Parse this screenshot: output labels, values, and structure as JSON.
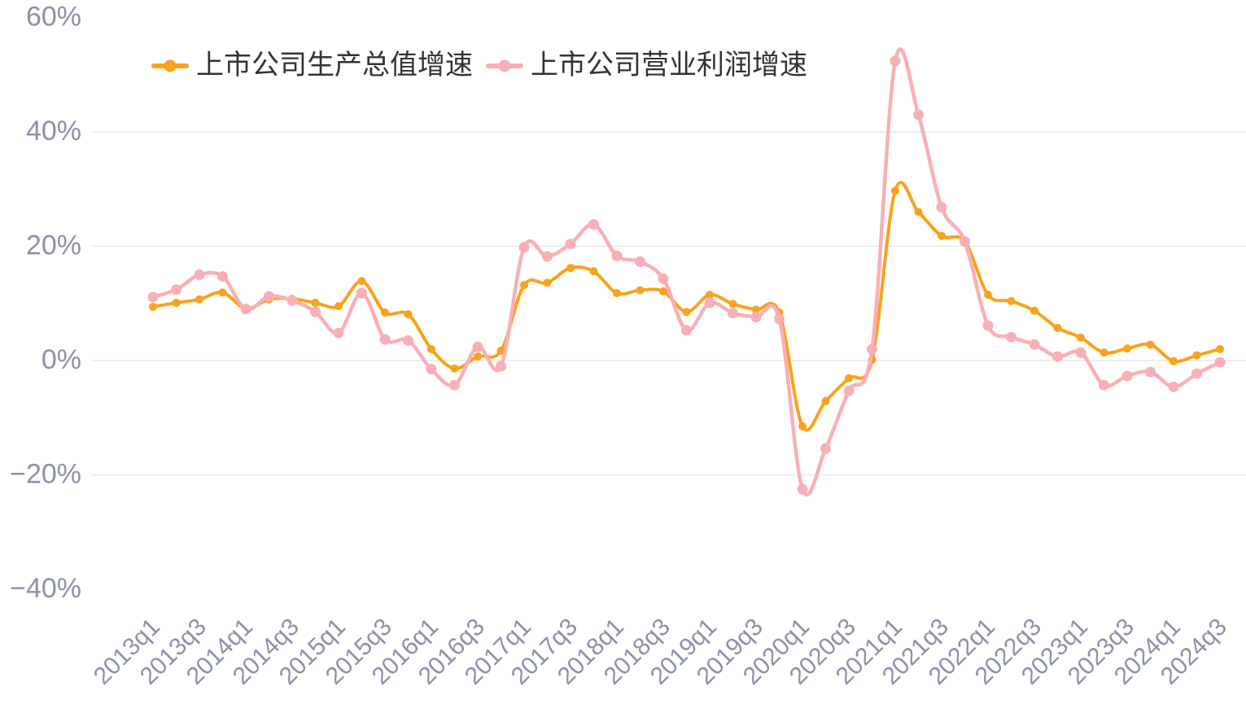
{
  "legend": {
    "items": [
      {
        "label": "上市公司生产总值增速",
        "color": "#FAA21B"
      },
      {
        "label": "上市公司营业利润增速",
        "color": "#F9AFB6"
      }
    ]
  },
  "chart_data": {
    "type": "line",
    "smooth": true,
    "title": "",
    "xlabel": "",
    "ylabel": "",
    "ylim": [
      -40,
      60
    ],
    "y_ticks": [
      60,
      40,
      20,
      0,
      -20,
      -40
    ],
    "y_tick_suffix": "%",
    "grid_lines_at": [
      40,
      20,
      0,
      -20
    ],
    "legend_position": "top-left",
    "x": [
      "2013q1",
      "2013q2",
      "2013q3",
      "2013q4",
      "2014q1",
      "2014q2",
      "2014q3",
      "2014q4",
      "2015q1",
      "2015q2",
      "2015q3",
      "2015q4",
      "2016q1",
      "2016q2",
      "2016q3",
      "2016q4",
      "2017q1",
      "2017q2",
      "2017q3",
      "2017q4",
      "2018q1",
      "2018q2",
      "2018q3",
      "2018q4",
      "2019q1",
      "2019q2",
      "2019q3",
      "2019q4",
      "2020q1",
      "2020q2",
      "2020q3",
      "2020q4",
      "2021q1",
      "2021q2",
      "2021q3",
      "2021q4",
      "2022q1",
      "2022q2",
      "2022q3",
      "2022q4",
      "2023q1",
      "2023q2",
      "2023q3",
      "2023q4",
      "2024q1",
      "2024q2",
      "2024q3"
    ],
    "x_ticks_shown": [
      "2013q1",
      "2013q3",
      "2014q1",
      "2014q3",
      "2015q1",
      "2015q3",
      "2016q1",
      "2016q3",
      "2017q1",
      "2017q3",
      "2018q1",
      "2018q3",
      "2019q1",
      "2019q3",
      "2020q1",
      "2020q3",
      "2021q1",
      "2021q3",
      "2022q1",
      "2022q3",
      "2023q1",
      "2023q3",
      "2024q1",
      "2024q3"
    ],
    "series": [
      {
        "name": "上市公司生产总值增速",
        "color": "#FAA21B",
        "line_width": 4,
        "point_radius": 5,
        "values": [
          9.4,
          10.1,
          10.7,
          11.9,
          9.1,
          10.7,
          10.8,
          10.1,
          9.5,
          13.9,
          8.4,
          8.1,
          2.0,
          -1.4,
          0.7,
          1.7,
          13.2,
          13.6,
          16.2,
          15.6,
          11.8,
          12.3,
          12.1,
          8.5,
          11.5,
          9.9,
          8.9,
          8.4,
          -11.5,
          -7.1,
          -3.1,
          0.1,
          29.7,
          26.0,
          21.8,
          20.8,
          11.5,
          10.4,
          8.7,
          5.7,
          4.0,
          1.4,
          2.1,
          2.8,
          -0.1,
          0.9,
          2.0
        ]
      },
      {
        "name": "上市公司营业利润增速",
        "color": "#F9AFB6",
        "line_width": 4.5,
        "point_radius": 6.5,
        "values": [
          11.1,
          12.4,
          15.0,
          14.7,
          9.0,
          11.2,
          10.5,
          8.5,
          4.8,
          11.8,
          3.7,
          3.5,
          -1.5,
          -4.3,
          2.4,
          -1.0,
          19.8,
          18.2,
          20.4,
          23.8,
          18.3,
          17.3,
          14.3,
          5.3,
          10.1,
          8.3,
          7.6,
          7.3,
          -22.5,
          -15.4,
          -5.3,
          2.0,
          52.4,
          43.0,
          26.8,
          20.8,
          6.1,
          4.1,
          2.8,
          0.7,
          1.4,
          -4.3,
          -2.7,
          -2.0,
          -4.6,
          -2.3,
          -0.3
        ]
      }
    ],
    "colors": {
      "background": "#FFFFFF",
      "grid": "#E7EAF1",
      "axis_label": "#8A92A8",
      "legend_text": "#333333"
    }
  }
}
